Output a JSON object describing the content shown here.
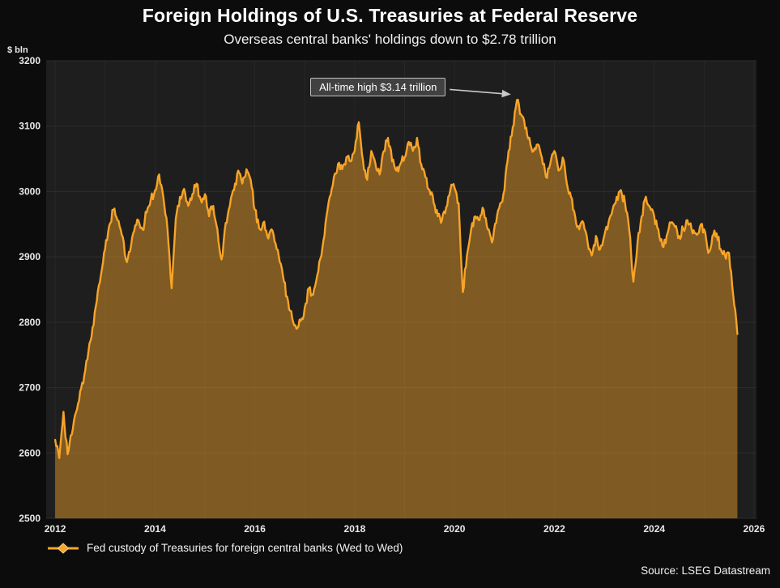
{
  "header": {
    "title": "Foreign Holdings of U.S. Treasuries at Federal Reserve",
    "subtitle": "Overseas central banks' holdings down to $2.78 trillion"
  },
  "axis": {
    "y_unit_label": "$ bln"
  },
  "annotation": {
    "text": "All-time high $3.14 trillion",
    "target_x": 2021.25,
    "target_y": 3140
  },
  "legend": {
    "label": "Fed custody of Treasuries for foreign central banks (Wed to Wed)"
  },
  "source": "Source: LSEG Datastream",
  "colors": {
    "line": "#f7a428",
    "fill": "rgba(247,164,40,0.45)",
    "plot_background": "#1e1e1e",
    "page_background": "#0c0c0c",
    "grid": "#2d2d2d",
    "text": "#e8e8e8",
    "arrow": "#c8c8c8"
  },
  "chart_data": {
    "type": "area",
    "title": "Foreign Holdings of U.S. Treasuries at Federal Reserve",
    "subtitle": "Overseas central banks' holdings down to $2.78 trillion",
    "ylabel": "$ bln",
    "xlabel": "",
    "ylim": [
      2500,
      3200
    ],
    "xlim": [
      2011.82,
      2026.05
    ],
    "y_ticks": [
      2500,
      2600,
      2700,
      2800,
      2900,
      3000,
      3100,
      3200
    ],
    "x_ticks": [
      2012,
      2014,
      2016,
      2018,
      2020,
      2022,
      2024,
      2026
    ],
    "grid": true,
    "legend_position": "bottom-left",
    "annotation": {
      "text": "All-time high $3.14 trillion",
      "x": 2021.25,
      "y": 3140
    },
    "x_start": 2012.0,
    "x_step_years": 0.0833333,
    "series": [
      {
        "name": "Fed custody of Treasuries for foreign central banks (Wed to Wed)",
        "y": [
          2620,
          2592,
          2663,
          2598,
          2628,
          2662,
          2694,
          2718,
          2755,
          2792,
          2832,
          2872,
          2912,
          2948,
          2972,
          2956,
          2934,
          2896,
          2908,
          2940,
          2956,
          2942,
          2968,
          2988,
          3002,
          3026,
          2992,
          2942,
          2852,
          2958,
          2992,
          3004,
          2978,
          2996,
          3012,
          2988,
          2996,
          2962,
          2978,
          2942,
          2896,
          2952,
          2978,
          3002,
          3032,
          3012,
          3034,
          3018,
          2972,
          2944,
          2952,
          2932,
          2942,
          2920,
          2892,
          2862,
          2832,
          2806,
          2790,
          2802,
          2822,
          2852,
          2842,
          2872,
          2902,
          2952,
          2992,
          3022,
          3042,
          3034,
          3052,
          3046,
          3062,
          3106,
          3048,
          3018,
          3062,
          3042,
          3026,
          3062,
          3082,
          3046,
          3032,
          3042,
          3052,
          3076,
          3062,
          3082,
          3042,
          3022,
          3002,
          2982,
          2962,
          2956,
          2976,
          3002,
          3006,
          2982,
          2846,
          2902,
          2942,
          2962,
          2956,
          2972,
          2942,
          2922,
          2952,
          2982,
          3002,
          3062,
          3098,
          3140,
          3118,
          3096,
          3082,
          3062,
          3072,
          3052,
          3022,
          3042,
          3062,
          3032,
          3052,
          3012,
          2992,
          2962,
          2942,
          2952,
          2922,
          2902,
          2932,
          2912,
          2932,
          2952,
          2972,
          2992,
          3002,
          2982,
          2942,
          2862,
          2922,
          2962,
          2992,
          2976,
          2962,
          2942,
          2916,
          2932,
          2952,
          2946,
          2932,
          2942,
          2956,
          2942,
          2936,
          2946,
          2942,
          2906,
          2932,
          2936,
          2912,
          2902,
          2906,
          2842,
          2782
        ]
      }
    ]
  }
}
